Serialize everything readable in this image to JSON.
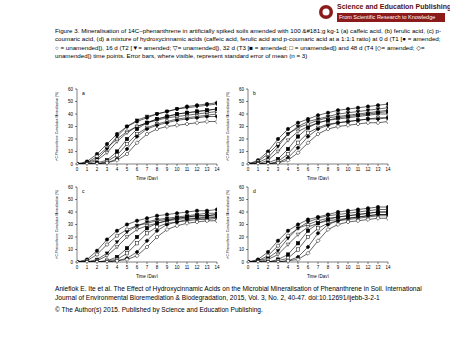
{
  "header": {
    "publisher": "Science and Education Publishing",
    "tagline": "From Scientific Research to Knowledge"
  },
  "caption": "Figure 3. Mineralisation of 14C–phenanthrene in artificially spiked soils amended with 100 &#181;g kg-1 (a) caffeic acid, (b) ferulic acid, (c) p-coumaric acid, (d) a mixture  of hydroxycinnamic acids (caffeic acid, ferulic acid and p-coumaric acid at a 1:1:1 ratio) at 0 d (T1 [● = amended; ○ = unamended]), 16 d (T2 [▼= amended; ▽= unamended]), 32 d (T3 [■ = amended; □ = unamended]) and 48 d (T4 [◇= amended; ◇= unamended]) time points. Error bars, where visible, represent standard error of mean (n = 3)",
  "citation": [
    "Aniefiok E. Ite et al. The Effect of Hydroxycinnamic Acids on the Microbial Mineralisation of Phenanthrene in Soil. International Journal of Environmental Bioremediation & Biodegradation, 2015, Vol. 3, No. 2, 40-47. doi:10.12691/ijebb-3-2-1",
    "© The Author(s) 2015. Published by Science and Education Publishing."
  ],
  "chart_data": [
    {
      "type": "line",
      "label": "a",
      "x_label": "Time (Day)",
      "y_label": "¹⁴C-Phenanthrene Cumulative Mineralisation (%)",
      "x": [
        0,
        1,
        2,
        3,
        4,
        5,
        6,
        7,
        8,
        9,
        10,
        11,
        12,
        13,
        14
      ],
      "xlim": [
        0,
        14
      ],
      "xticks": [
        0,
        1,
        2,
        3,
        4,
        5,
        6,
        7,
        8,
        9,
        10,
        11,
        12,
        13,
        14
      ],
      "ylim": [
        0,
        60
      ],
      "yticks": [
        0,
        10,
        20,
        30,
        40,
        50,
        60
      ],
      "series": [
        {
          "color": "#000000",
          "marker": "circle",
          "values": [
            0,
            2,
            8,
            16,
            24,
            30,
            34,
            37,
            40,
            42,
            44,
            46,
            47,
            48,
            49
          ]
        },
        {
          "color": "#000000",
          "marker": "circle-open",
          "values": [
            0,
            1,
            6,
            13,
            20,
            26,
            30,
            33,
            36,
            38,
            40,
            41,
            42,
            43,
            44
          ]
        },
        {
          "color": "#000000",
          "marker": "triangle-down",
          "values": [
            0,
            1,
            4,
            12,
            22,
            30,
            35,
            38,
            40,
            42,
            44,
            45,
            46,
            47,
            48
          ]
        },
        {
          "color": "#000000",
          "marker": "triangle-down-open",
          "values": [
            0,
            0,
            3,
            9,
            18,
            25,
            30,
            33,
            35,
            37,
            38,
            39,
            40,
            41,
            42
          ]
        },
        {
          "color": "#000000",
          "marker": "square",
          "values": [
            0,
            0,
            1,
            3,
            10,
            20,
            28,
            33,
            36,
            38,
            40,
            41,
            42,
            43,
            44
          ]
        },
        {
          "color": "#000000",
          "marker": "square-open",
          "values": [
            0,
            0,
            0,
            2,
            7,
            16,
            24,
            29,
            32,
            34,
            36,
            37,
            38,
            39,
            40
          ]
        },
        {
          "color": "#000000",
          "marker": "diamond",
          "values": [
            0,
            0,
            0,
            1,
            4,
            12,
            22,
            28,
            31,
            33,
            35,
            36,
            37,
            38,
            38
          ]
        },
        {
          "color": "#000000",
          "marker": "diamond-open",
          "values": [
            0,
            0,
            0,
            1,
            3,
            8,
            17,
            24,
            28,
            30,
            31,
            32,
            33,
            34,
            34
          ]
        }
      ]
    },
    {
      "type": "line",
      "label": "b",
      "x_label": "Time (Day)",
      "y_label": "¹⁴C-Phenanthrene Cumulative Mineralisation (%)",
      "x": [
        0,
        1,
        2,
        3,
        4,
        5,
        6,
        7,
        8,
        9,
        10,
        11,
        12,
        13,
        14
      ],
      "xlim": [
        0,
        14
      ],
      "xticks": [
        0,
        1,
        2,
        3,
        4,
        5,
        6,
        7,
        8,
        9,
        10,
        11,
        12,
        13,
        14
      ],
      "ylim": [
        0,
        60
      ],
      "yticks": [
        0,
        10,
        20,
        30,
        40,
        50,
        60
      ],
      "series": [
        {
          "color": "#000000",
          "marker": "circle",
          "values": [
            0,
            3,
            10,
            20,
            28,
            33,
            36,
            39,
            41,
            43,
            44,
            45,
            46,
            47,
            48
          ]
        },
        {
          "color": "#000000",
          "marker": "circle-open",
          "values": [
            0,
            2,
            8,
            16,
            24,
            29,
            32,
            35,
            37,
            38,
            39,
            40,
            41,
            42,
            43
          ]
        },
        {
          "color": "#000000",
          "marker": "triangle-down",
          "values": [
            0,
            1,
            5,
            14,
            24,
            30,
            34,
            36,
            38,
            40,
            41,
            42,
            43,
            44,
            45
          ]
        },
        {
          "color": "#000000",
          "marker": "triangle-down-open",
          "values": [
            0,
            0,
            3,
            10,
            19,
            26,
            30,
            33,
            35,
            36,
            37,
            38,
            39,
            40,
            40
          ]
        },
        {
          "color": "#000000",
          "marker": "square",
          "values": [
            0,
            0,
            1,
            4,
            12,
            22,
            29,
            33,
            35,
            37,
            38,
            39,
            40,
            41,
            42
          ]
        },
        {
          "color": "#000000",
          "marker": "square-open",
          "values": [
            0,
            0,
            0,
            2,
            8,
            17,
            25,
            29,
            32,
            33,
            34,
            35,
            36,
            37,
            37
          ]
        },
        {
          "color": "#000000",
          "marker": "diamond",
          "values": [
            0,
            0,
            0,
            1,
            5,
            13,
            22,
            28,
            31,
            33,
            34,
            35,
            36,
            36,
            37
          ]
        },
        {
          "color": "#000000",
          "marker": "diamond-open",
          "values": [
            0,
            0,
            0,
            1,
            3,
            9,
            17,
            24,
            28,
            30,
            31,
            32,
            33,
            33,
            34
          ]
        }
      ]
    },
    {
      "type": "line",
      "label": "c",
      "x_label": "Time (Day)",
      "y_label": "¹⁴C-Phenanthrene Cumulative Mineralisation (%)",
      "x": [
        0,
        1,
        2,
        3,
        4,
        5,
        6,
        7,
        8,
        9,
        10,
        11,
        12,
        13,
        14
      ],
      "xlim": [
        0,
        14
      ],
      "xticks": [
        0,
        1,
        2,
        3,
        4,
        5,
        6,
        7,
        8,
        9,
        10,
        11,
        12,
        13,
        14
      ],
      "ylim": [
        0,
        60
      ],
      "yticks": [
        0,
        10,
        20,
        30,
        40,
        50,
        60
      ],
      "series": [
        {
          "color": "#000000",
          "marker": "circle",
          "values": [
            0,
            2,
            9,
            18,
            25,
            30,
            33,
            35,
            37,
            38,
            39,
            40,
            41,
            41,
            42
          ]
        },
        {
          "color": "#000000",
          "marker": "circle-open",
          "values": [
            0,
            1,
            6,
            14,
            21,
            26,
            29,
            31,
            33,
            34,
            35,
            36,
            37,
            37,
            38
          ]
        },
        {
          "color": "#000000",
          "marker": "triangle-down",
          "values": [
            0,
            0,
            2,
            7,
            16,
            24,
            29,
            32,
            34,
            35,
            36,
            37,
            38,
            39,
            39
          ]
        },
        {
          "color": "#000000",
          "marker": "triangle-down-open",
          "values": [
            0,
            0,
            1,
            5,
            12,
            20,
            26,
            29,
            31,
            33,
            34,
            35,
            35,
            36,
            36
          ]
        },
        {
          "color": "#000000",
          "marker": "square",
          "values": [
            0,
            0,
            0,
            1,
            4,
            11,
            20,
            27,
            31,
            33,
            35,
            36,
            37,
            37,
            38
          ]
        },
        {
          "color": "#000000",
          "marker": "square-open",
          "values": [
            0,
            0,
            0,
            1,
            2,
            7,
            15,
            23,
            28,
            31,
            32,
            33,
            34,
            34,
            35
          ]
        },
        {
          "color": "#000000",
          "marker": "diamond",
          "values": [
            0,
            0,
            0,
            0,
            1,
            3,
            8,
            17,
            25,
            30,
            32,
            34,
            35,
            35,
            36
          ]
        },
        {
          "color": "#000000",
          "marker": "diamond-open",
          "values": [
            0,
            0,
            0,
            0,
            1,
            2,
            5,
            12,
            20,
            26,
            29,
            31,
            32,
            33,
            33
          ]
        }
      ]
    },
    {
      "type": "line",
      "label": "d",
      "x_label": "Time (Day)",
      "y_label": "¹⁴C-Phenanthrene Cumulative Mineralisation (%)",
      "x": [
        0,
        1,
        2,
        3,
        4,
        5,
        6,
        7,
        8,
        9,
        10,
        11,
        12,
        13,
        14
      ],
      "xlim": [
        0,
        14
      ],
      "xticks": [
        0,
        1,
        2,
        3,
        4,
        5,
        6,
        7,
        8,
        9,
        10,
        11,
        12,
        13,
        14
      ],
      "ylim": [
        0,
        60
      ],
      "yticks": [
        0,
        10,
        20,
        30,
        40,
        50,
        60
      ],
      "series": [
        {
          "color": "#000000",
          "marker": "circle",
          "values": [
            0,
            2,
            8,
            17,
            25,
            30,
            34,
            36,
            38,
            40,
            41,
            42,
            43,
            44,
            44
          ]
        },
        {
          "color": "#000000",
          "marker": "circle-open",
          "values": [
            0,
            1,
            5,
            13,
            21,
            27,
            30,
            33,
            35,
            36,
            37,
            38,
            39,
            40,
            40
          ]
        },
        {
          "color": "#000000",
          "marker": "triangle-down",
          "values": [
            0,
            1,
            3,
            9,
            19,
            27,
            32,
            35,
            37,
            38,
            39,
            40,
            41,
            42,
            42
          ]
        },
        {
          "color": "#000000",
          "marker": "triangle-down-open",
          "values": [
            0,
            0,
            2,
            6,
            14,
            22,
            28,
            31,
            33,
            34,
            35,
            36,
            37,
            38,
            38
          ]
        },
        {
          "color": "#000000",
          "marker": "square",
          "values": [
            0,
            0,
            0,
            2,
            6,
            15,
            25,
            31,
            34,
            36,
            37,
            38,
            39,
            40,
            40
          ]
        },
        {
          "color": "#000000",
          "marker": "square-open",
          "values": [
            0,
            0,
            0,
            1,
            3,
            10,
            20,
            27,
            31,
            33,
            34,
            35,
            36,
            37,
            37
          ]
        },
        {
          "color": "#000000",
          "marker": "diamond",
          "values": [
            0,
            0,
            0,
            0,
            1,
            4,
            12,
            23,
            30,
            33,
            35,
            36,
            37,
            38,
            38
          ]
        },
        {
          "color": "#000000",
          "marker": "diamond-open",
          "values": [
            0,
            0,
            0,
            0,
            1,
            2,
            7,
            17,
            26,
            30,
            32,
            33,
            34,
            35,
            35
          ]
        }
      ]
    }
  ]
}
